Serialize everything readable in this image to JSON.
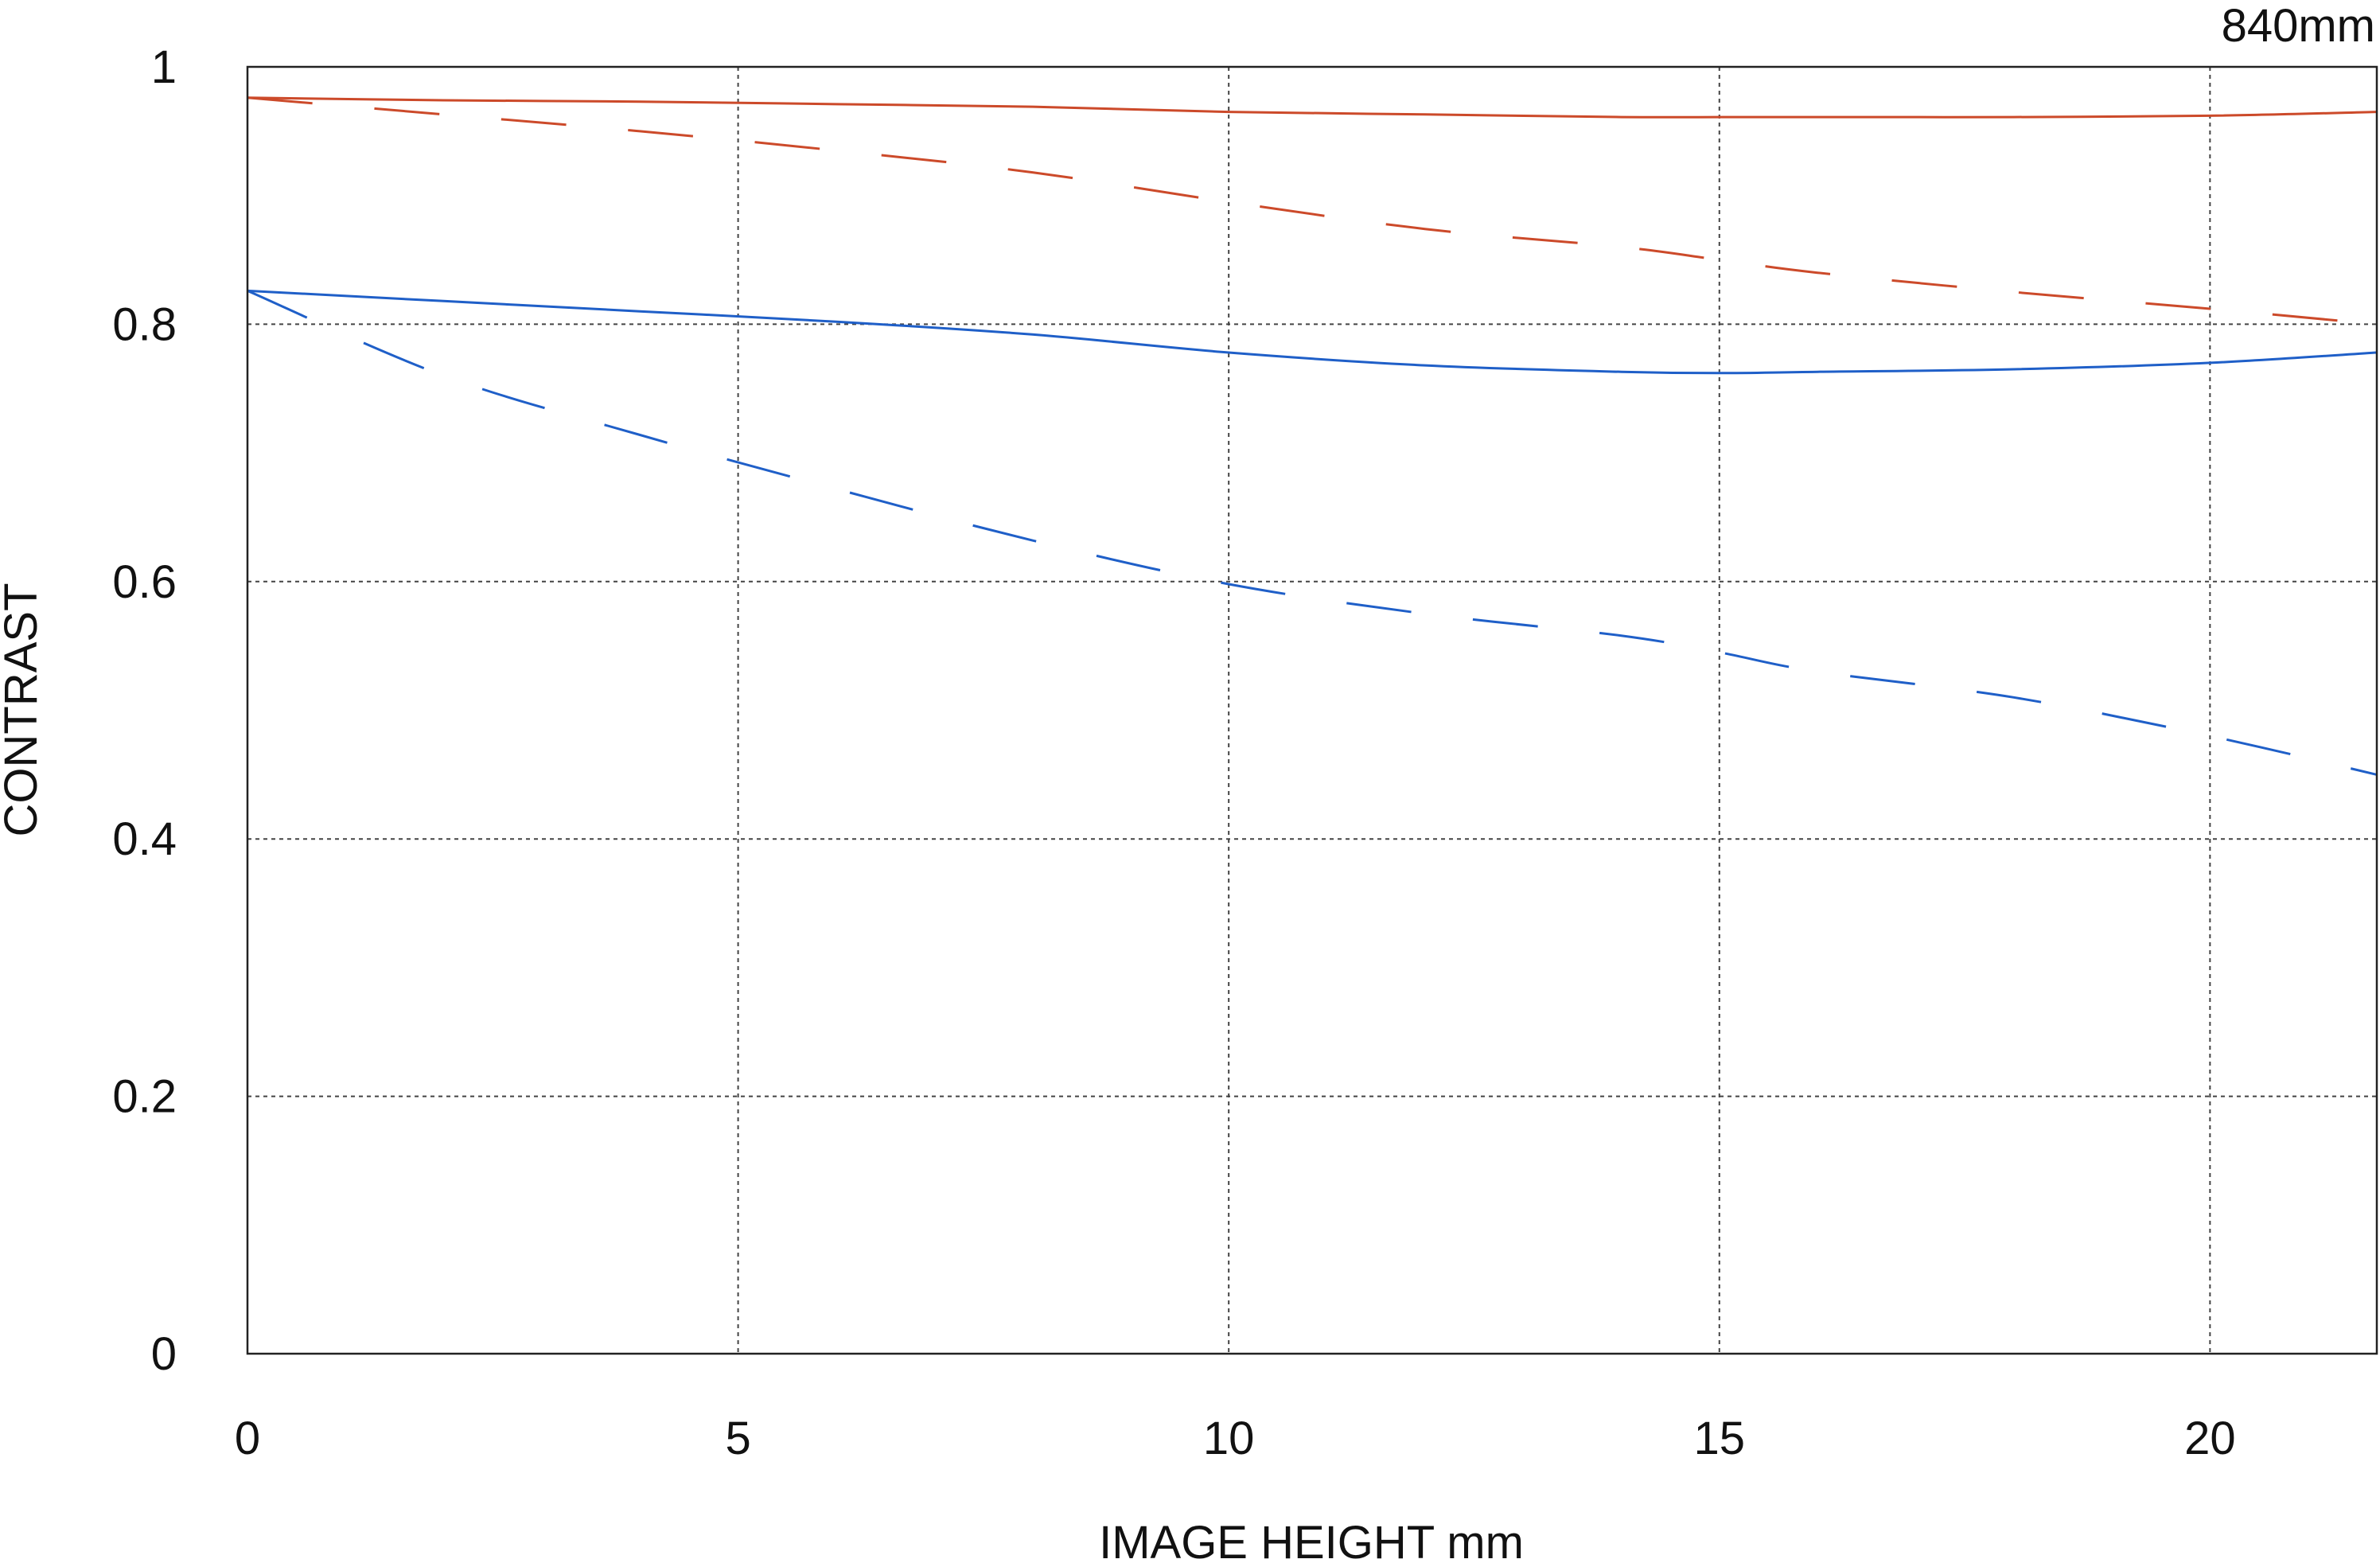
{
  "chart_data": {
    "type": "line",
    "focal_length_label": "840mm",
    "xlabel": "IMAGE HEIGHT  mm",
    "ylabel": "CONTRAST",
    "xlim": [
      0,
      21.7
    ],
    "ylim": [
      0,
      1
    ],
    "x_ticks": [
      0,
      5,
      10,
      15,
      20
    ],
    "x_tick_labels": [
      "0",
      "5",
      "10",
      "15",
      "20"
    ],
    "y_ticks": [
      0,
      0.2,
      0.4,
      0.6,
      0.8,
      1
    ],
    "y_tick_labels": [
      "0",
      "0.2",
      "0.4",
      "0.6",
      "0.8",
      "1"
    ],
    "grid": true,
    "grid_style": "dotted",
    "series": [
      {
        "color": "#cc4a2a",
        "style": "solid",
        "x": [
          0,
          2,
          4,
          6,
          8,
          10,
          12,
          14,
          15,
          16,
          18,
          20,
          21.7
        ],
        "y": [
          0.976,
          0.974,
          0.973,
          0.971,
          0.969,
          0.965,
          0.963,
          0.961,
          0.961,
          0.961,
          0.961,
          0.962,
          0.965
        ]
      },
      {
        "color": "#cc4a2a",
        "style": "dashed",
        "x": [
          0,
          2,
          4,
          6,
          8,
          10,
          12,
          14,
          15,
          16,
          18,
          20,
          21.7
        ],
        "y": [
          0.976,
          0.963,
          0.95,
          0.935,
          0.918,
          0.895,
          0.874,
          0.86,
          0.85,
          0.84,
          0.825,
          0.812,
          0.8
        ]
      },
      {
        "color": "#1f5fc8",
        "style": "solid",
        "x": [
          0,
          2,
          4,
          6,
          8,
          10,
          12,
          14,
          15,
          16,
          18,
          20,
          21.7
        ],
        "y": [
          0.826,
          0.818,
          0.81,
          0.802,
          0.792,
          0.778,
          0.768,
          0.763,
          0.762,
          0.763,
          0.765,
          0.77,
          0.778
        ]
      },
      {
        "color": "#1f5fc8",
        "style": "dashed",
        "x": [
          0,
          2,
          4,
          6,
          8,
          10,
          12,
          14,
          15,
          16,
          18,
          20,
          21.7
        ],
        "y": [
          0.826,
          0.76,
          0.714,
          0.672,
          0.632,
          0.598,
          0.575,
          0.558,
          0.545,
          0.53,
          0.51,
          0.48,
          0.45
        ]
      }
    ]
  }
}
